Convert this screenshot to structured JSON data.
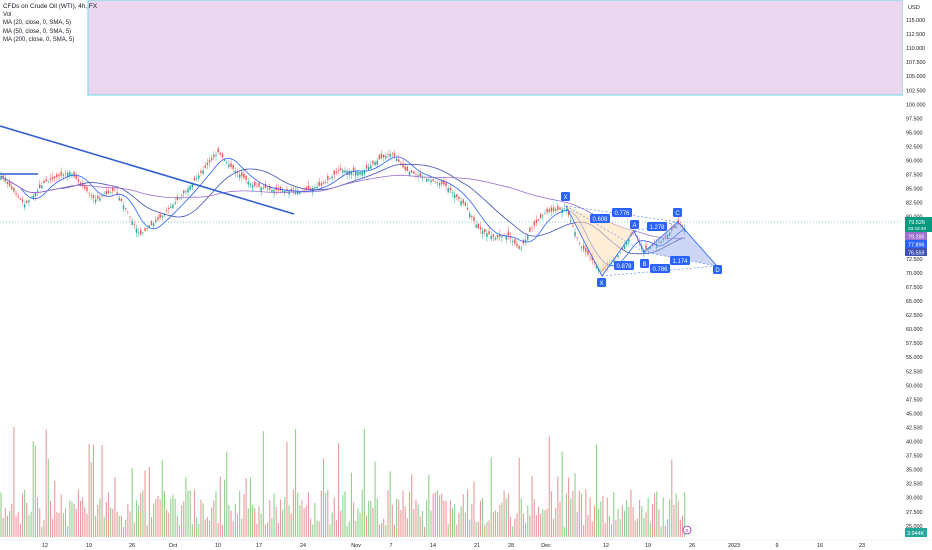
{
  "legend": {
    "title": "CFDs on Crude Oil (WTI), 4h, FX",
    "vol": "Vol",
    "ma20": "MA (20, close, 0, SMA, 5)",
    "ma50": "MA (50, close, 0, SMA, 5)",
    "ma200": "MA (200, close, 0, SMA, 5)"
  },
  "currency": "USD",
  "colors": {
    "up": "#26a69a",
    "down": "#ef5350",
    "vol_up": "#8fd08b",
    "vol_down": "#e99a9a",
    "ma20": "#2962ff",
    "ma50": "#3f51b5",
    "ma200": "#9c6fd1",
    "trendline": "#2f5fd0",
    "zone_fill": "#ead6ee",
    "zone_border": "#80deea",
    "pattern_blue": "#2962ff",
    "pattern_orange": "#ffe0b2",
    "price_label": "#089981"
  },
  "price_axis": [
    "115.000",
    "112.500",
    "110.000",
    "107.500",
    "105.000",
    "102.500",
    "100.000",
    "97.500",
    "95.000",
    "92.500",
    "90.000",
    "87.500",
    "85.000",
    "82.500",
    "80.000",
    "77.500",
    "75.000",
    "72.500",
    "70.000",
    "67.500",
    "65.000",
    "62.500",
    "60.000",
    "57.500",
    "55.000",
    "52.500",
    "50.000",
    "47.500",
    "45.000",
    "42.500",
    "40.000",
    "37.500",
    "35.000",
    "32.500",
    "30.000",
    "27.500",
    "25.000"
  ],
  "price_labels": {
    "current": "79.526",
    "countdown": "03:43:49",
    "ma_a": "79.285",
    "ma_b": "77.896",
    "ma_c": "76.559",
    "volume": "3.944K"
  },
  "time_axis": [
    "12",
    "19",
    "26",
    "Oct",
    "10",
    "17",
    "24",
    "Nov",
    "7",
    "14",
    "21",
    "28",
    "Dec",
    "12",
    "19",
    "26",
    "2023",
    "9",
    "16",
    "23"
  ],
  "pattern": {
    "points": {
      "X": "X",
      "A": "A",
      "B": "B",
      "C": "C",
      "D": "D"
    },
    "ratios": {
      "xb": "0.608",
      "ac": "0.776",
      "bd": "1.278",
      "xd": "0.878",
      "ac2": "0.786",
      "cd": "1.174"
    }
  },
  "chart_data": {
    "type": "candlestick",
    "title": "CFDs on Crude Oil (WTI), 4h, FX",
    "ylabel": "USD",
    "ylim": [
      25,
      117.5
    ],
    "series": [
      {
        "name": "MA (20, close, 0, SMA, 5)"
      },
      {
        "name": "MA (50, close, 0, SMA, 5)"
      },
      {
        "name": "MA (200, close, 0, SMA, 5)"
      },
      {
        "name": "Vol"
      }
    ],
    "last_price": 79.526,
    "last_volume": "3.944K"
  }
}
